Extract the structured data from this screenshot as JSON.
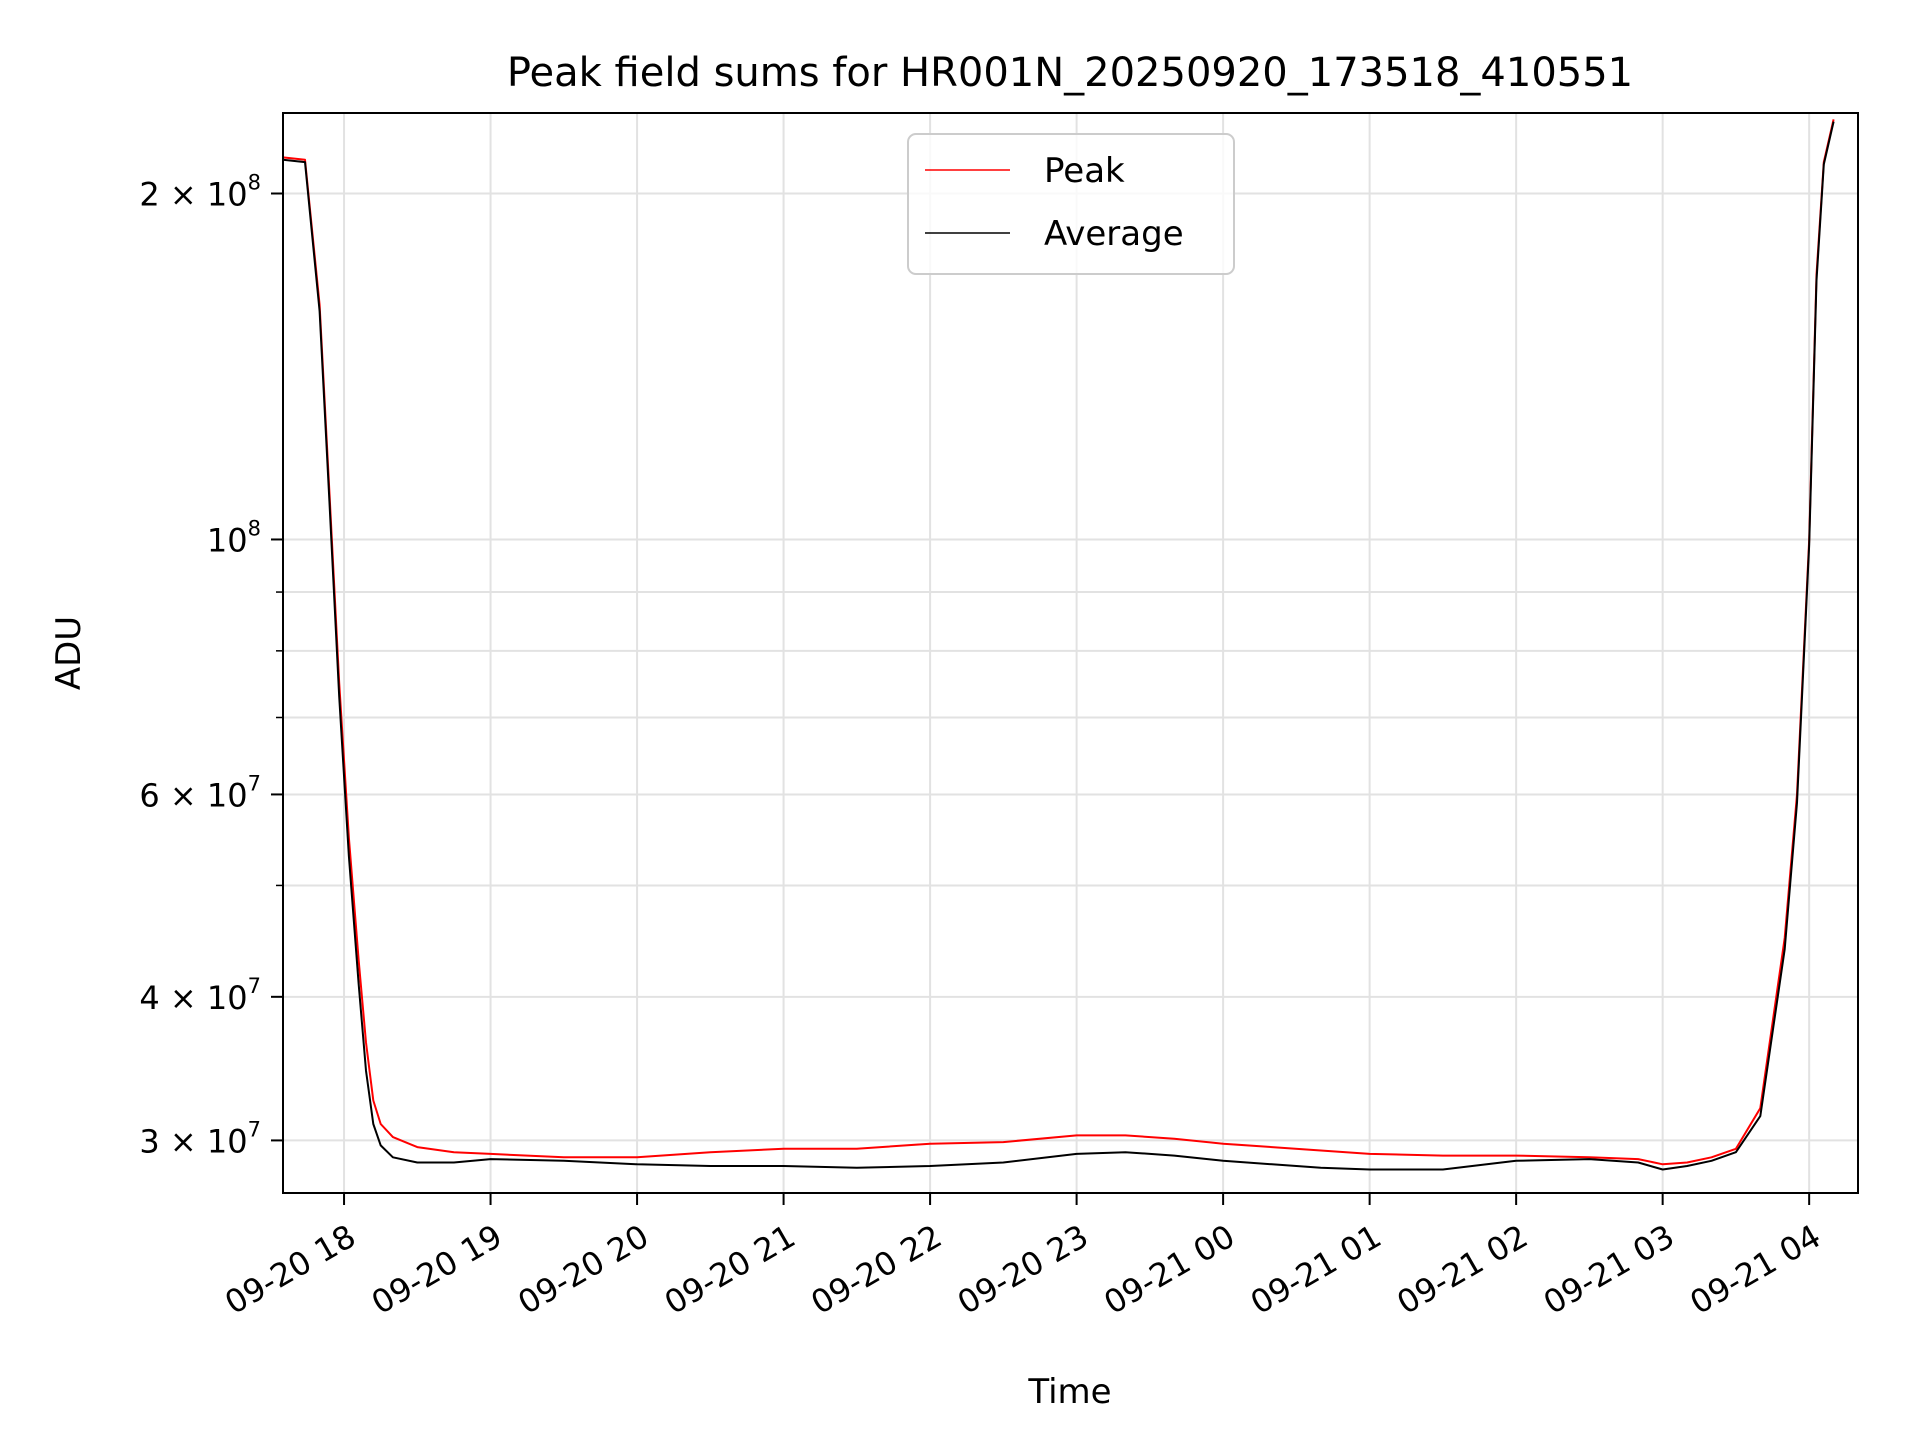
{
  "chart_data": {
    "type": "line",
    "title": "Peak field sums for HR001N_20250920_173518_410551",
    "xlabel": "Time",
    "ylabel": "ADU",
    "y_scale": "log",
    "ylim": [
      27000000,
      235000000
    ],
    "xlim": [
      "2025-09-20 17:35",
      "2025-09-21 04:20"
    ],
    "grid": true,
    "legend_position": "top-center",
    "x_ticks": [
      {
        "label": "09-20 18",
        "value": "2025-09-20 18:00"
      },
      {
        "label": "09-20 19",
        "value": "2025-09-20 19:00"
      },
      {
        "label": "09-20 20",
        "value": "2025-09-20 20:00"
      },
      {
        "label": "09-20 21",
        "value": "2025-09-20 21:00"
      },
      {
        "label": "09-20 22",
        "value": "2025-09-20 22:00"
      },
      {
        "label": "09-20 23",
        "value": "2025-09-20 23:00"
      },
      {
        "label": "09-21 00",
        "value": "2025-09-21 00:00"
      },
      {
        "label": "09-21 01",
        "value": "2025-09-21 01:00"
      },
      {
        "label": "09-21 02",
        "value": "2025-09-21 02:00"
      },
      {
        "label": "09-21 03",
        "value": "2025-09-21 03:00"
      },
      {
        "label": "09-21 04",
        "value": "2025-09-21 04:00"
      }
    ],
    "y_ticks": [
      {
        "mantissa": "3 × 10",
        "exp": "7",
        "value": 30000000
      },
      {
        "mantissa": "4 × 10",
        "exp": "7",
        "value": 40000000
      },
      {
        "mantissa": "6 × 10",
        "exp": "7",
        "value": 60000000
      },
      {
        "mantissa": "10",
        "exp": "8",
        "value": 100000000
      },
      {
        "mantissa": "2 × 10",
        "exp": "8",
        "value": 200000000
      }
    ],
    "y_minor_ticks": [
      50000000,
      70000000,
      80000000,
      90000000
    ],
    "series": [
      {
        "name": "Peak",
        "color": "#ff0000",
        "x": [
          "2025-09-20 17:35",
          "2025-09-20 17:44",
          "2025-09-20 17:50",
          "2025-09-20 17:54",
          "2025-09-20 17:58",
          "2025-09-20 18:02",
          "2025-09-20 18:06",
          "2025-09-20 18:09",
          "2025-09-20 18:12",
          "2025-09-20 18:15",
          "2025-09-20 18:20",
          "2025-09-20 18:30",
          "2025-09-20 18:45",
          "2025-09-20 19:00",
          "2025-09-20 19:30",
          "2025-09-20 20:00",
          "2025-09-20 20:30",
          "2025-09-20 21:00",
          "2025-09-20 21:30",
          "2025-09-20 22:00",
          "2025-09-20 22:30",
          "2025-09-20 23:00",
          "2025-09-20 23:20",
          "2025-09-20 23:40",
          "2025-09-21 00:00",
          "2025-09-21 00:20",
          "2025-09-21 00:40",
          "2025-09-21 01:00",
          "2025-09-21 01:30",
          "2025-09-21 02:00",
          "2025-09-21 02:30",
          "2025-09-21 02:50",
          "2025-09-21 03:00",
          "2025-09-21 03:10",
          "2025-09-21 03:20",
          "2025-09-21 03:30",
          "2025-09-21 03:40",
          "2025-09-21 03:50",
          "2025-09-21 03:55",
          "2025-09-21 04:00",
          "2025-09-21 04:03",
          "2025-09-21 04:06",
          "2025-09-21 04:10"
        ],
        "y": [
          215000000,
          214000000,
          160000000,
          110000000,
          75000000,
          55000000,
          43000000,
          36500000,
          32500000,
          31000000,
          30200000,
          29600000,
          29300000,
          29200000,
          29000000,
          29000000,
          29300000,
          29500000,
          29500000,
          29800000,
          29900000,
          30300000,
          30300000,
          30100000,
          29800000,
          29600000,
          29400000,
          29200000,
          29100000,
          29100000,
          29000000,
          28900000,
          28600000,
          28700000,
          29000000,
          29500000,
          32000000,
          45000000,
          60000000,
          100000000,
          170000000,
          213000000,
          232000000
        ]
      },
      {
        "name": "Average",
        "color": "#000000",
        "x": [
          "2025-09-20 17:35",
          "2025-09-20 17:44",
          "2025-09-20 17:50",
          "2025-09-20 17:54",
          "2025-09-20 17:58",
          "2025-09-20 18:02",
          "2025-09-20 18:06",
          "2025-09-20 18:09",
          "2025-09-20 18:12",
          "2025-09-20 18:15",
          "2025-09-20 18:20",
          "2025-09-20 18:30",
          "2025-09-20 18:45",
          "2025-09-20 19:00",
          "2025-09-20 19:30",
          "2025-09-20 20:00",
          "2025-09-20 20:30",
          "2025-09-20 21:00",
          "2025-09-20 21:30",
          "2025-09-20 22:00",
          "2025-09-20 22:30",
          "2025-09-20 23:00",
          "2025-09-20 23:20",
          "2025-09-20 23:40",
          "2025-09-21 00:00",
          "2025-09-21 00:20",
          "2025-09-21 00:40",
          "2025-09-21 01:00",
          "2025-09-21 01:30",
          "2025-09-21 02:00",
          "2025-09-21 02:30",
          "2025-09-21 02:50",
          "2025-09-21 03:00",
          "2025-09-21 03:10",
          "2025-09-21 03:20",
          "2025-09-21 03:30",
          "2025-09-21 03:40",
          "2025-09-21 03:50",
          "2025-09-21 03:55",
          "2025-09-21 04:00",
          "2025-09-21 04:03",
          "2025-09-21 04:06",
          "2025-09-21 04:10"
        ],
        "y": [
          214000000,
          213000000,
          158000000,
          108000000,
          73000000,
          53000000,
          41000000,
          34500000,
          31000000,
          29700000,
          29000000,
          28700000,
          28700000,
          28900000,
          28800000,
          28600000,
          28500000,
          28500000,
          28400000,
          28500000,
          28700000,
          29200000,
          29300000,
          29100000,
          28800000,
          28600000,
          28400000,
          28300000,
          28300000,
          28800000,
          28900000,
          28700000,
          28300000,
          28500000,
          28800000,
          29300000,
          31500000,
          44000000,
          59000000,
          99000000,
          168000000,
          212000000,
          231000000
        ]
      }
    ]
  }
}
